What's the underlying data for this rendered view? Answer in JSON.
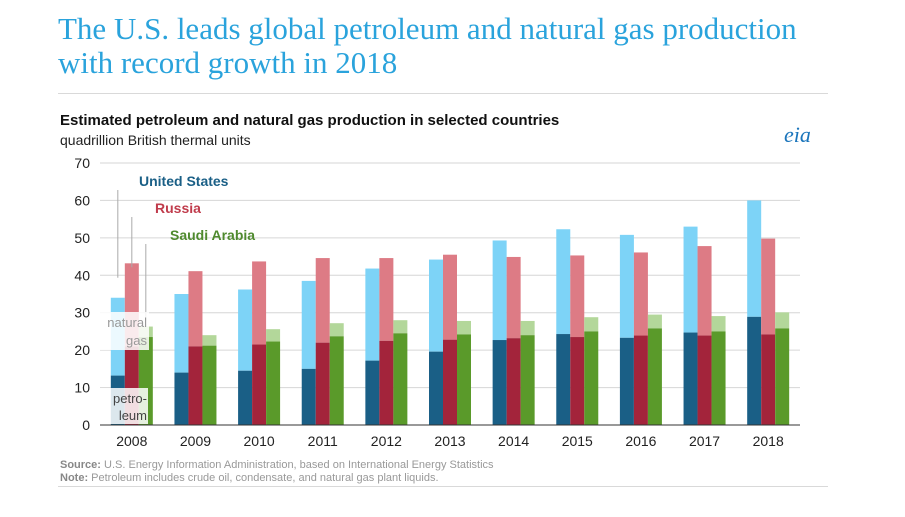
{
  "headline": "The U.S. leads global petroleum and natural gas production with record growth in 2018",
  "logo_text": "eia",
  "source_label": "Source:",
  "source_text": "U.S. Energy Information Administration, based on International Energy Statistics",
  "note_label": "Note:",
  "note_text": "Petroleum includes crude oil, condensate, and natural gas plant liquids.",
  "chart_data": {
    "type": "bar",
    "stacked": true,
    "title": "Estimated petroleum and natural gas production in selected countries",
    "ylabel": "quadrillion British thermal units",
    "ylim": [
      0,
      70
    ],
    "yticks": [
      0,
      10,
      20,
      30,
      40,
      50,
      60,
      70
    ],
    "grid": true,
    "categories": [
      "2008",
      "2009",
      "2010",
      "2011",
      "2012",
      "2013",
      "2014",
      "2015",
      "2016",
      "2017",
      "2018"
    ],
    "component_labels": {
      "natural_gas": [
        "natural",
        "gas"
      ],
      "petroleum": [
        "petro-",
        "leum"
      ]
    },
    "series": [
      {
        "name": "United States",
        "petroleum_color": "#1a5f86",
        "gas_color": "#7dd3f7",
        "label_color": "#1a5f86",
        "petroleum": [
          13.2,
          14.0,
          14.5,
          15.0,
          17.2,
          19.6,
          22.7,
          24.3,
          23.3,
          24.7,
          28.9
        ],
        "total": [
          34.0,
          35.0,
          36.2,
          38.5,
          41.8,
          44.2,
          49.3,
          52.3,
          50.8,
          53.0,
          60.0
        ]
      },
      {
        "name": "Russia",
        "petroleum_color": "#a3243b",
        "gas_color": "#dd7b85",
        "label_color": "#c03c4c",
        "petroleum": [
          21.0,
          21.0,
          21.5,
          22.0,
          22.5,
          22.8,
          23.2,
          23.5,
          23.9,
          23.9,
          24.2
        ],
        "total": [
          43.2,
          41.1,
          43.7,
          44.6,
          44.6,
          45.5,
          44.9,
          45.3,
          46.1,
          47.8,
          49.8
        ]
      },
      {
        "name": "Saudi Arabia",
        "petroleum_color": "#5a9a2a",
        "gas_color": "#b3d79a",
        "label_color": "#4f8a2e",
        "petroleum": [
          23.5,
          21.2,
          22.3,
          23.7,
          24.5,
          24.2,
          24.0,
          25.0,
          25.8,
          25.0,
          25.8
        ],
        "total": [
          26.3,
          24.0,
          25.6,
          27.2,
          28.0,
          27.8,
          27.8,
          28.8,
          29.5,
          29.1,
          30.1
        ]
      }
    ]
  }
}
